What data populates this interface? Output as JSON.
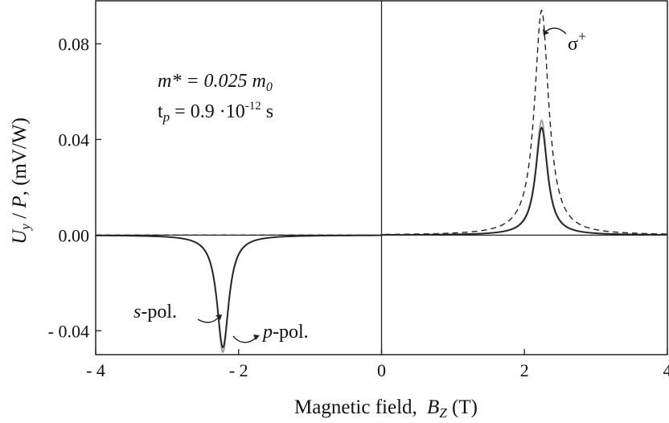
{
  "chart_data": {
    "type": "line",
    "title": "",
    "xlabel": "Magnetic field,",
    "xlabel_symbol": "B",
    "xlabel_sub": "Z",
    "xlabel_unit": " (T)",
    "ylabel": "U",
    "ylabel_sub": "y",
    "ylabel_mid": " / ",
    "ylabel_sym2": "P",
    "ylabel_unit": ",  (mV/W)",
    "xlim": [
      -4,
      4
    ],
    "ylim": [
      -0.05,
      0.098
    ],
    "x_ticks": [
      -4,
      -2,
      0,
      2,
      4
    ],
    "x_tick_labels": [
      "- 4",
      "- 2",
      "0",
      "2",
      "4"
    ],
    "y_ticks": [
      -0.04,
      0.0,
      0.04,
      0.08
    ],
    "y_tick_labels": [
      "- 0.04",
      "0.00",
      "0.04",
      "0.08"
    ],
    "series": [
      {
        "name": "σ+",
        "style": "dashed",
        "color": "#222222",
        "peak_x": 2.24,
        "peak_y": 0.094,
        "width": 0.12,
        "side": "positive"
      },
      {
        "name": "p-pol.",
        "style": "solid",
        "color": "#999999",
        "peak_x": 2.24,
        "peak_y": 0.048,
        "width": 0.1,
        "side": "positive",
        "neg_peak_x": -2.22,
        "neg_peak_y": -0.049
      },
      {
        "name": "s-pol.",
        "style": "solid",
        "color": "#222222",
        "peak_x": 2.24,
        "peak_y": 0.045,
        "width": 0.1,
        "side": "positive",
        "neg_peak_x": -2.22,
        "neg_peak_y": -0.047
      }
    ],
    "annotations": {
      "mass_label": "m* = 0.025 m",
      "mass_sub": "0",
      "tp_label": "t",
      "tp_sub": "p",
      "tp_value": " = 0.9 ·10",
      "tp_exp": "-12",
      "tp_unit": " s",
      "sigma_label": "σ",
      "sigma_sup": "+",
      "s_pol_italic": "s",
      "s_pol_rest": "-pol.",
      "p_pol_italic": "p",
      "p_pol_rest": "-pol."
    }
  }
}
